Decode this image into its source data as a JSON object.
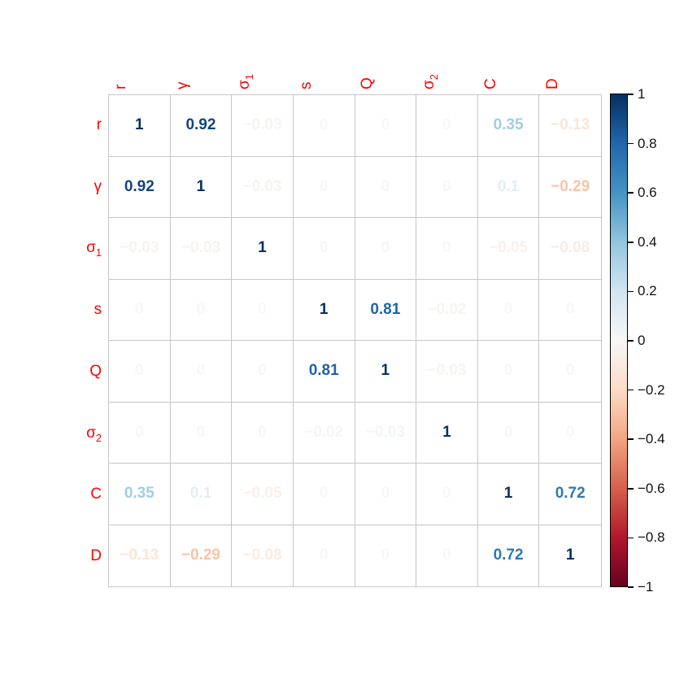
{
  "chart_data": {
    "type": "heatmap",
    "subtype": "correlation-matrix",
    "title": "",
    "variables": [
      {
        "text": "r",
        "sub": ""
      },
      {
        "text": "γ",
        "sub": ""
      },
      {
        "text": "σ",
        "sub": "1"
      },
      {
        "text": "s",
        "sub": ""
      },
      {
        "text": "Q",
        "sub": ""
      },
      {
        "text": "σ",
        "sub": "2"
      },
      {
        "text": "C",
        "sub": ""
      },
      {
        "text": "D",
        "sub": ""
      }
    ],
    "matrix": [
      [
        1.0,
        0.92,
        -0.03,
        0.0,
        0.0,
        0.0,
        0.35,
        -0.13
      ],
      [
        0.92,
        1.0,
        -0.03,
        0.0,
        0.0,
        0.0,
        0.1,
        -0.29
      ],
      [
        -0.03,
        -0.03,
        1.0,
        0.0,
        0.0,
        0.0,
        -0.05,
        -0.08
      ],
      [
        0.0,
        0.0,
        0.0,
        1.0,
        0.81,
        -0.02,
        0.0,
        0.0
      ],
      [
        0.0,
        0.0,
        0.0,
        0.81,
        1.0,
        -0.03,
        0.0,
        0.0
      ],
      [
        0.0,
        0.0,
        0.0,
        -0.02,
        -0.03,
        1.0,
        0.0,
        0.0
      ],
      [
        0.35,
        0.1,
        -0.05,
        0.0,
        0.0,
        0.0,
        1.0,
        0.72
      ],
      [
        -0.13,
        -0.29,
        -0.08,
        0.0,
        0.0,
        0.0,
        0.72,
        1.0
      ]
    ],
    "cell_labels": [
      [
        "1",
        "0.92",
        "−0.03",
        "0",
        "0",
        "0",
        "0.35",
        "−0.13"
      ],
      [
        "0.92",
        "1",
        "−0.03",
        "0",
        "0",
        "0",
        "0.1",
        "−0.29"
      ],
      [
        "−0.03",
        "−0.03",
        "1",
        "0",
        "0",
        "0",
        "−0.05",
        "−0.08"
      ],
      [
        "0",
        "0",
        "0",
        "1",
        "0.81",
        "−0.02",
        "0",
        "0"
      ],
      [
        "0",
        "0",
        "0",
        "0.81",
        "1",
        "−0.03",
        "0",
        "0"
      ],
      [
        "0",
        "0",
        "0",
        "−0.02",
        "−0.03",
        "1",
        "0",
        "0"
      ],
      [
        "0.35",
        "0.1",
        "−0.05",
        "0",
        "0",
        "0",
        "1",
        "0.72"
      ],
      [
        "−0.13",
        "−0.29",
        "−0.08",
        "0",
        "0",
        "0",
        "0.72",
        "1"
      ]
    ],
    "value_range": [
      -1,
      1
    ],
    "label_color": "#ff0000",
    "grid_line_color": "#c6c6c6",
    "palette": [
      {
        "v": 1.0,
        "c": "#053061"
      },
      {
        "v": 0.8,
        "c": "#2166AC"
      },
      {
        "v": 0.6,
        "c": "#4393C3"
      },
      {
        "v": 0.4,
        "c": "#92C5DE"
      },
      {
        "v": 0.2,
        "c": "#D1E5F0"
      },
      {
        "v": 0.0,
        "c": "#F7F7F7"
      },
      {
        "v": -0.2,
        "c": "#FDDBC7"
      },
      {
        "v": -0.4,
        "c": "#F4A582"
      },
      {
        "v": -0.6,
        "c": "#D6604D"
      },
      {
        "v": -0.8,
        "c": "#B2182B"
      },
      {
        "v": -1.0,
        "c": "#67001F"
      }
    ],
    "colorbar": {
      "position": "right",
      "min": -1,
      "max": 1,
      "tick_values": [
        1,
        0.8,
        0.6,
        0.4,
        0.2,
        0,
        -0.2,
        -0.4,
        -0.6,
        -0.8,
        -1
      ],
      "tick_labels": [
        "1",
        "0.8",
        "0.6",
        "0.4",
        "0.2",
        "0",
        "−0.2",
        "−0.4",
        "−0.6",
        "−0.8",
        "−1"
      ],
      "border_color": "#000000",
      "label_color": "#111111"
    }
  }
}
